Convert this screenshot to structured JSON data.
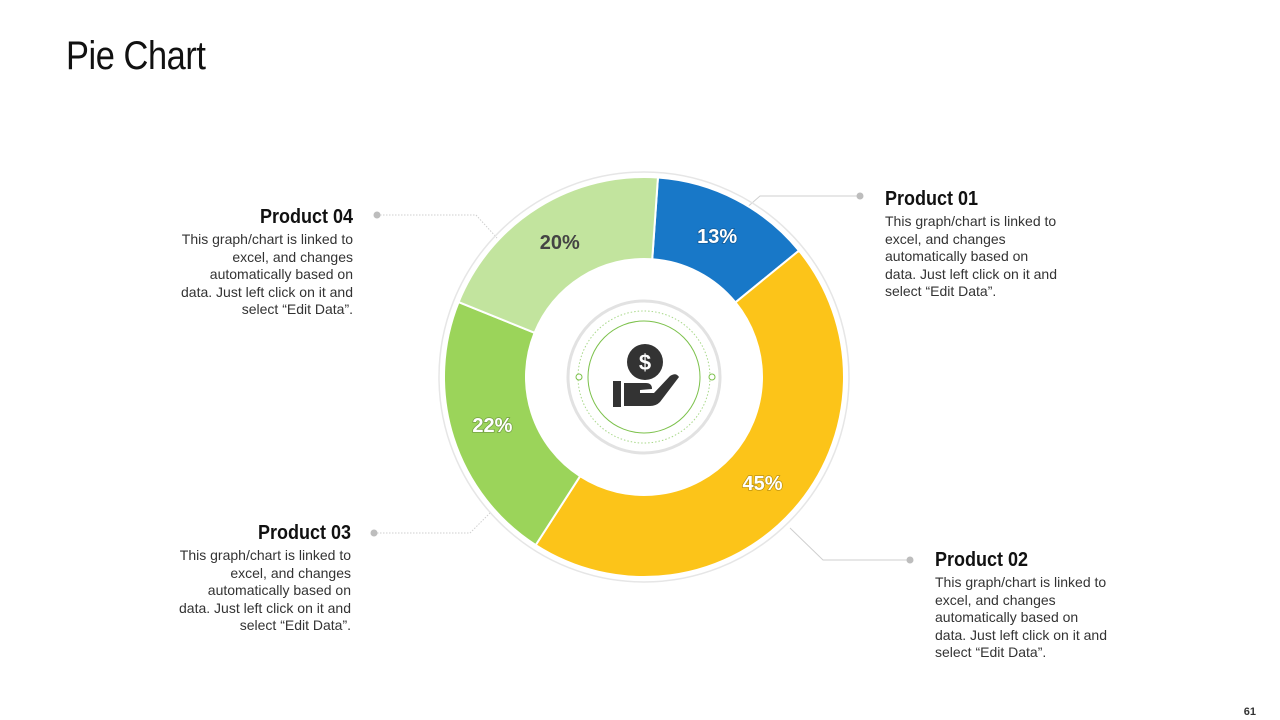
{
  "title": "Pie Chart",
  "page_number": "61",
  "colors": {
    "product_01": "#1878C8",
    "product_02": "#FCC419",
    "product_03": "#9BD45A",
    "product_04": "#C2E49E",
    "connector": "#BDBDBD",
    "icon": "#333333",
    "icon_ring": "#7CC14B"
  },
  "center_icon": "hand-holding-dollar-icon",
  "callouts": [
    {
      "name": "Product 01",
      "text": "This graph/chart is linked to excel, and changes automatically based on data. Just left click on it and select “Edit Data”."
    },
    {
      "name": "Product 02",
      "text": "This graph/chart is linked to excel, and changes automatically based on data. Just left click on it and select “Edit Data”."
    },
    {
      "name": "Product 03",
      "text": "This graph/chart is linked to excel, and changes automatically based on data. Just left click on it and select “Edit Data”."
    },
    {
      "name": "Product 04",
      "text": "This graph/chart is linked to excel, and changes automatically based on data. Just left click on it and select “Edit Data”."
    }
  ],
  "chart_data": {
    "type": "pie",
    "style": "donut",
    "categories": [
      "Product 01",
      "Product 02",
      "Product 03",
      "Product 04"
    ],
    "values": [
      13,
      45,
      22,
      20
    ],
    "labels": [
      "13%",
      "45%",
      "22%",
      "20%"
    ],
    "colors": [
      "#1878C8",
      "#FCC419",
      "#9BD45A",
      "#C2E49E"
    ]
  }
}
